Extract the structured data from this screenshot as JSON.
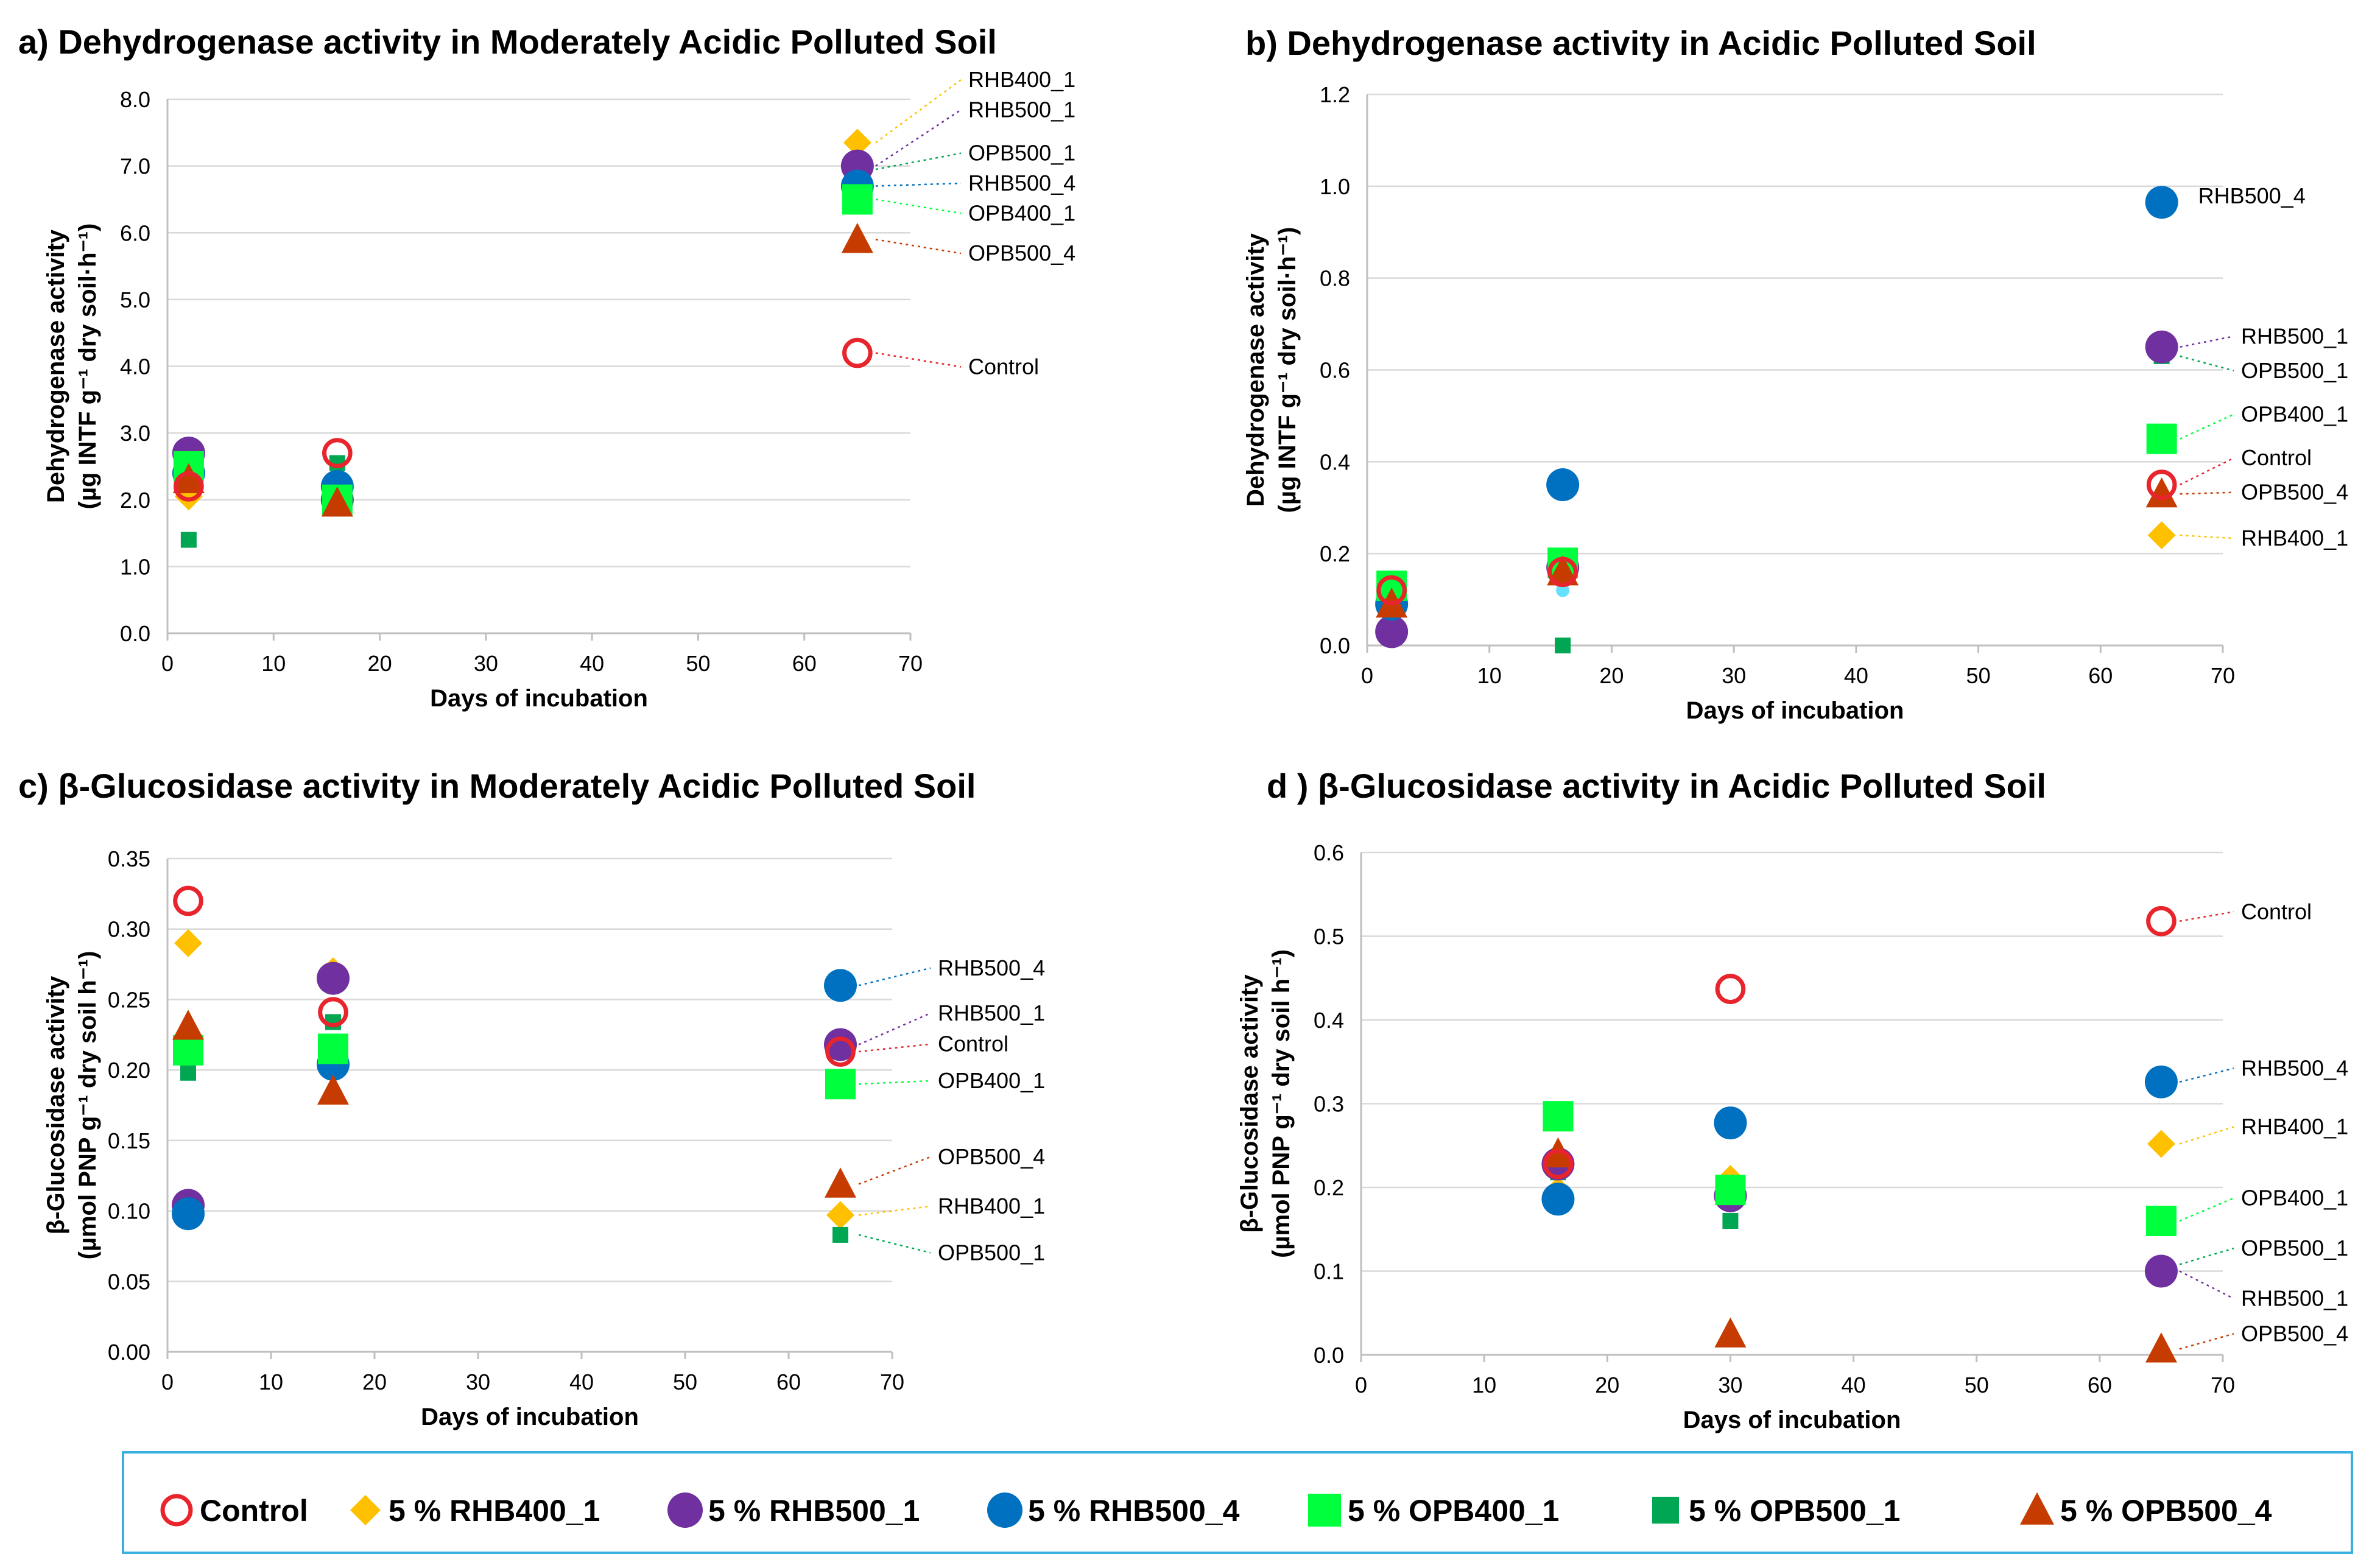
{
  "colors": {
    "Control": "#e8242c",
    "RHB400_1": "#ffc000",
    "RHB500_1": "#7030a0",
    "RHB500_4": "#0070c0",
    "OPB400_1": "#00ff3c",
    "OPB500_1": "#00a651",
    "OPB500_4": "#c63c00",
    "small_cyan": "#66e0ff",
    "grid": "#d9d9d9",
    "legend_border": "#39b0e0"
  },
  "legend": {
    "items": [
      {
        "key": "Control",
        "label": "Control",
        "marker": "open-circle"
      },
      {
        "key": "RHB400_1",
        "label": "5 % RHB400_1",
        "marker": "diamond"
      },
      {
        "key": "RHB500_1",
        "label": "5 % RHB500_1",
        "marker": "circle"
      },
      {
        "key": "RHB500_4",
        "label": "5 % RHB500_4",
        "marker": "circle"
      },
      {
        "key": "OPB400_1",
        "label": "5 % OPB400_1",
        "marker": "square"
      },
      {
        "key": "OPB500_1",
        "label": "5 % OPB500_1",
        "marker": "small-square"
      },
      {
        "key": "OPB500_4",
        "label": "5 % OPB500_4",
        "marker": "triangle"
      }
    ]
  },
  "chart_data": [
    {
      "id": "a",
      "type": "scatter",
      "title": "a) Dehydrogenase activity in Moderately Acidic Polluted Soil",
      "xlabel": "Days of incubation",
      "ylabel_line1": "Dehydrogenase activity",
      "ylabel_line2": "(µg INTF g⁻¹ dry soil·h⁻¹)",
      "xlim": [
        0,
        70
      ],
      "ylim": [
        0,
        8
      ],
      "xticks": [
        "0",
        "10",
        "20",
        "30",
        "40",
        "50",
        "60",
        "70"
      ],
      "yticks": [
        "0.0",
        "1.0",
        "2.0",
        "3.0",
        "4.0",
        "5.0",
        "6.0",
        "7.0",
        "8.0"
      ],
      "x": [
        2,
        16,
        65
      ],
      "series": [
        {
          "key": "Control",
          "values": [
            2.2,
            2.7,
            4.2
          ]
        },
        {
          "key": "RHB400_1",
          "values": [
            2.05,
            2.0,
            7.35
          ]
        },
        {
          "key": "RHB500_1",
          "values": [
            2.7,
            2.0,
            7.0
          ]
        },
        {
          "key": "RHB500_4",
          "values": [
            2.4,
            2.2,
            6.7
          ]
        },
        {
          "key": "OPB400_1",
          "values": [
            2.5,
            2.0,
            6.5
          ]
        },
        {
          "key": "OPB500_1",
          "values": [
            1.4,
            2.55,
            6.95
          ]
        },
        {
          "key": "OPB500_4",
          "values": [
            2.3,
            1.95,
            5.9
          ]
        }
      ],
      "annotations": [
        {
          "text": "RHB400_1",
          "key": "RHB400_1",
          "label_y": 8.2
        },
        {
          "text": "RHB500_1",
          "key": "RHB500_1",
          "label_y": 7.75
        },
        {
          "text": "OPB500_1",
          "key": "OPB500_1",
          "label_y": 7.1
        },
        {
          "text": "RHB500_4",
          "key": "RHB500_4",
          "label_y": 6.65
        },
        {
          "text": "OPB400_1",
          "key": "OPB400_1",
          "label_y": 6.2
        },
        {
          "text": "OPB500_4",
          "key": "OPB500_4",
          "label_y": 5.6
        },
        {
          "text": "Control",
          "key": "Control",
          "label_y": 3.9
        }
      ]
    },
    {
      "id": "b",
      "type": "scatter",
      "title": "b) Dehydrogenase activity in Acidic Polluted Soil",
      "xlabel": "Days of incubation",
      "ylabel_line1": "Dehydrogenase activity",
      "ylabel_line2": "(µg INTF g⁻¹ dry soil·h⁻¹)",
      "xlim": [
        0,
        70
      ],
      "ylim": [
        0,
        1.2
      ],
      "xticks": [
        "0",
        "10",
        "20",
        "30",
        "40",
        "50",
        "60",
        "70"
      ],
      "yticks": [
        "0.0",
        "0.2",
        "0.4",
        "0.6",
        "0.8",
        "1.0",
        "1.2"
      ],
      "x": [
        2,
        16,
        65
      ],
      "series": [
        {
          "key": "Control",
          "values": [
            0.12,
            0.16,
            0.35
          ]
        },
        {
          "key": "RHB400_1",
          "values": [
            0.12,
            0.16,
            0.24
          ]
        },
        {
          "key": "RHB500_1",
          "values": [
            0.03,
            0.17,
            0.65
          ]
        },
        {
          "key": "RHB500_4",
          "values": [
            0.09,
            0.35,
            0.965
          ]
        },
        {
          "key": "OPB400_1",
          "values": [
            0.13,
            0.18,
            0.45
          ]
        },
        {
          "key": "OPB500_1",
          "values": [
            0.14,
            0.0,
            0.63
          ]
        },
        {
          "key": "OPB500_4",
          "values": [
            0.09,
            0.16,
            0.33
          ]
        },
        {
          "key": "small_cyan",
          "values": [
            0.01,
            0.12,
            null
          ]
        }
      ],
      "annotations": [
        {
          "text": "RHB500_4",
          "key": "RHB500_4",
          "label_y": 0.965,
          "direct": true
        },
        {
          "text": "RHB500_1",
          "key": "RHB500_1",
          "label_y": 0.66
        },
        {
          "text": "OPB500_1",
          "key": "OPB500_1",
          "label_y": 0.585
        },
        {
          "text": "OPB400_1",
          "key": "OPB400_1",
          "label_y": 0.49
        },
        {
          "text": "Control",
          "key": "Control",
          "label_y": 0.395
        },
        {
          "text": "OPB500_4",
          "key": "OPB500_4",
          "label_y": 0.32
        },
        {
          "text": "RHB400_1",
          "key": "RHB400_1",
          "label_y": 0.22
        }
      ]
    },
    {
      "id": "c",
      "type": "scatter",
      "title": "c) β-Glucosidase activity in Moderately Acidic Polluted Soil",
      "xlabel": "Days of incubation",
      "ylabel_line1": "β-Glucosidase activity",
      "ylabel_line2": "(µmol PNP g⁻¹ dry soil h⁻¹)",
      "xlim": [
        0,
        70
      ],
      "ylim": [
        0,
        0.35
      ],
      "xticks": [
        "0",
        "10",
        "20",
        "30",
        "40",
        "50",
        "60",
        "70"
      ],
      "yticks": [
        "0.00",
        "0.05",
        "0.10",
        "0.15",
        "0.20",
        "0.25",
        "0.30",
        "0.35"
      ],
      "x": [
        2,
        16,
        65
      ],
      "series": [
        {
          "key": "Control",
          "values": [
            0.32,
            0.241,
            0.213
          ]
        },
        {
          "key": "RHB400_1",
          "values": [
            0.29,
            0.27,
            0.097
          ]
        },
        {
          "key": "RHB500_1",
          "values": [
            0.104,
            0.265,
            0.218
          ]
        },
        {
          "key": "RHB500_4",
          "values": [
            0.098,
            0.204,
            0.26
          ]
        },
        {
          "key": "OPB400_1",
          "values": [
            0.214,
            0.215,
            0.19
          ]
        },
        {
          "key": "OPB500_1",
          "values": [
            0.198,
            0.234,
            0.083
          ]
        },
        {
          "key": "OPB500_4",
          "values": [
            0.231,
            0.185,
            0.119
          ]
        }
      ],
      "annotations": [
        {
          "text": "RHB500_4",
          "key": "RHB500_4",
          "label_y": 0.268
        },
        {
          "text": "RHB500_1",
          "key": "RHB500_1",
          "label_y": 0.236
        },
        {
          "text": "Control",
          "key": "Control",
          "label_y": 0.214
        },
        {
          "text": "OPB400_1",
          "key": "OPB400_1",
          "label_y": 0.188
        },
        {
          "text": "OPB500_4",
          "key": "OPB500_4",
          "label_y": 0.134
        },
        {
          "text": "RHB400_1",
          "key": "RHB400_1",
          "label_y": 0.099
        },
        {
          "text": "OPB500_1",
          "key": "OPB500_1",
          "label_y": 0.066
        }
      ]
    },
    {
      "id": "d",
      "type": "scatter",
      "title": "d ) β-Glucosidase activity in Acidic Polluted Soil",
      "xlabel": "Days of incubation",
      "ylabel_line1": "β-Glucosidase activity",
      "ylabel_line2": "(µmol PNP g⁻¹ dry soil h⁻¹)",
      "xlim": [
        0,
        70
      ],
      "ylim": [
        0,
        0.6
      ],
      "xticks": [
        "0",
        "10",
        "20",
        "30",
        "40",
        "50",
        "60",
        "70"
      ],
      "yticks": [
        "0.0",
        "0.1",
        "0.2",
        "0.3",
        "0.4",
        "0.5",
        "0.6"
      ],
      "x": [
        16,
        30,
        65
      ],
      "series": [
        {
          "key": "Control",
          "values": [
            0.228,
            0.437,
            0.518
          ]
        },
        {
          "key": "RHB400_1",
          "values": [
            0.196,
            0.21,
            0.252
          ]
        },
        {
          "key": "RHB500_1",
          "values": [
            0.228,
            0.19,
            0.1
          ]
        },
        {
          "key": "RHB500_4",
          "values": [
            0.186,
            0.277,
            0.326
          ]
        },
        {
          "key": "OPB400_1",
          "values": [
            0.285,
            0.197,
            0.16
          ]
        },
        {
          "key": "OPB500_1",
          "values": [
            0.218,
            0.16,
            0.108
          ]
        },
        {
          "key": "OPB500_4",
          "values": [
            0.24,
            0.025,
            0.007
          ]
        }
      ],
      "annotations": [
        {
          "text": "Control",
          "key": "Control",
          "label_y": 0.522
        },
        {
          "text": "RHB500_4",
          "key": "RHB500_4",
          "label_y": 0.335
        },
        {
          "text": "RHB400_1",
          "key": "RHB400_1",
          "label_y": 0.265
        },
        {
          "text": "OPB400_1",
          "key": "OPB400_1",
          "label_y": 0.18
        },
        {
          "text": "OPB500_1",
          "key": "OPB500_1",
          "label_y": 0.12
        },
        {
          "text": "RHB500_1",
          "key": "RHB500_1",
          "label_y": 0.06
        },
        {
          "text": "OPB500_4",
          "key": "OPB500_4",
          "label_y": 0.018
        }
      ]
    }
  ]
}
